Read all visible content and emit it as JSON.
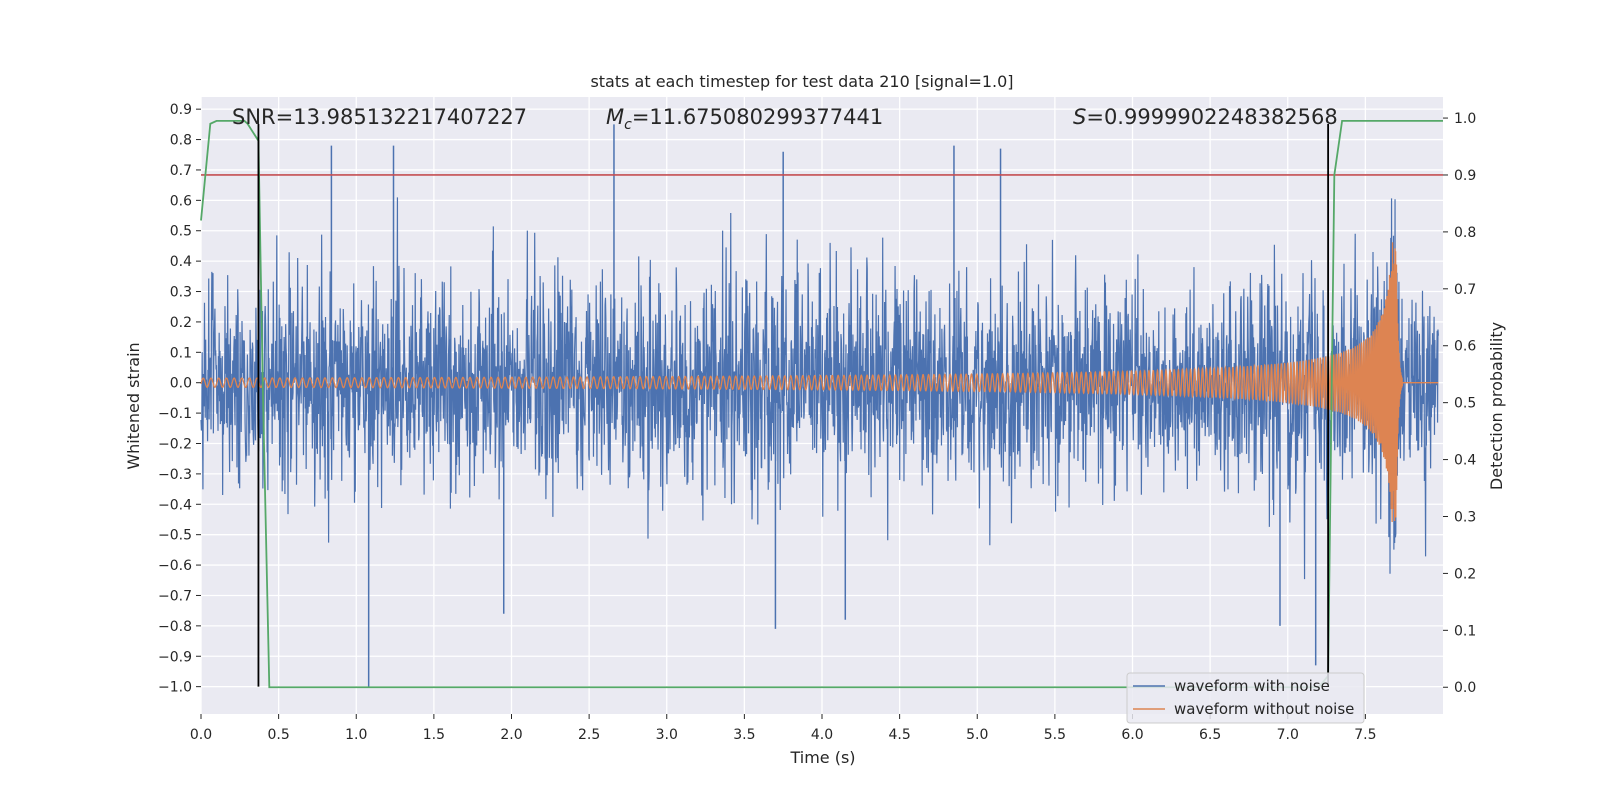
{
  "chart_data": {
    "type": "line",
    "title": "stats at each timestep for test data 210 [signal=1.0]",
    "xlabel": "Time (s)",
    "ylabel_left": "Whitened strain",
    "ylabel_right": "Detection probability",
    "xlim": [
      0.0,
      8.0
    ],
    "ylim_left": [
      -1.09,
      0.94
    ],
    "ylim_right": [
      -0.047,
      1.037
    ],
    "x_ticks": [
      "0.0",
      "0.5",
      "1.0",
      "1.5",
      "2.0",
      "2.5",
      "3.0",
      "3.5",
      "4.0",
      "4.5",
      "5.0",
      "5.5",
      "6.0",
      "6.5",
      "7.0",
      "7.5"
    ],
    "y_ticks_left": [
      "0.9",
      "0.8",
      "0.7",
      "0.6",
      "0.5",
      "0.4",
      "0.3",
      "0.2",
      "0.1",
      "0.0",
      "−0.1",
      "−0.2",
      "−0.3",
      "−0.4",
      "−0.5",
      "−0.6",
      "−0.7",
      "−0.8",
      "−0.9",
      "−1.0"
    ],
    "y_ticks_right": [
      "1.0",
      "0.9",
      "0.8",
      "0.7",
      "0.6",
      "0.5",
      "0.4",
      "0.3",
      "0.2",
      "0.1",
      "0.0"
    ],
    "grid": true,
    "annotations": {
      "snr": "SNR=13.985132217407227",
      "mc_symbol": "M",
      "mc_sub": "c",
      "mc_value": "=11.675080299377441",
      "s_symbol": "S",
      "s_value": "=0.9999902248382568"
    },
    "legend": {
      "position": "lower-right",
      "entries": [
        "waveform with noise",
        "waveform without noise"
      ]
    },
    "series": [
      {
        "name": "waveform with noise",
        "axis": "left",
        "color": "#4c72b0",
        "kind": "noise",
        "envelope_typical": [
          -0.45,
          0.45
        ],
        "extremes": [
          {
            "x": 0.84,
            "y": 0.78
          },
          {
            "x": 1.24,
            "y": 0.78
          },
          {
            "x": 2.66,
            "y": 0.85
          },
          {
            "x": 3.75,
            "y": 0.76
          },
          {
            "x": 4.85,
            "y": 0.78
          },
          {
            "x": 5.15,
            "y": 0.77
          },
          {
            "x": 1.08,
            "y": -1.0
          },
          {
            "x": 7.18,
            "y": -0.93
          },
          {
            "x": 3.7,
            "y": -0.81
          },
          {
            "x": 6.95,
            "y": -0.8
          },
          {
            "x": 4.15,
            "y": -0.78
          },
          {
            "x": 1.95,
            "y": -0.76
          }
        ]
      },
      {
        "name": "waveform without noise",
        "axis": "left",
        "color": "#dd8452",
        "kind": "chirp",
        "amplitude_start": 0.015,
        "amplitude_peak": 0.47,
        "freq_start_hz": 20,
        "merger_time": 7.7,
        "ringdown_end": 7.74
      },
      {
        "name": "detection probability",
        "axis": "right",
        "color": "#55a868",
        "x": [
          0.0,
          0.06,
          0.1,
          0.2,
          0.28,
          0.3,
          0.37,
          0.4,
          0.44,
          0.5,
          7.0,
          7.2,
          7.26,
          7.3,
          7.35,
          8.0
        ],
        "y": [
          0.82,
          0.99,
          0.995,
          0.995,
          0.995,
          0.99,
          0.96,
          0.5,
          0.0,
          0.0,
          0.0,
          0.0,
          0.02,
          0.9,
          0.995,
          0.995
        ]
      }
    ],
    "threshold": {
      "axis": "right",
      "value": 0.9,
      "color": "#c44e52"
    },
    "vlines": [
      0.37,
      7.26
    ],
    "vline_color": "#000000"
  }
}
